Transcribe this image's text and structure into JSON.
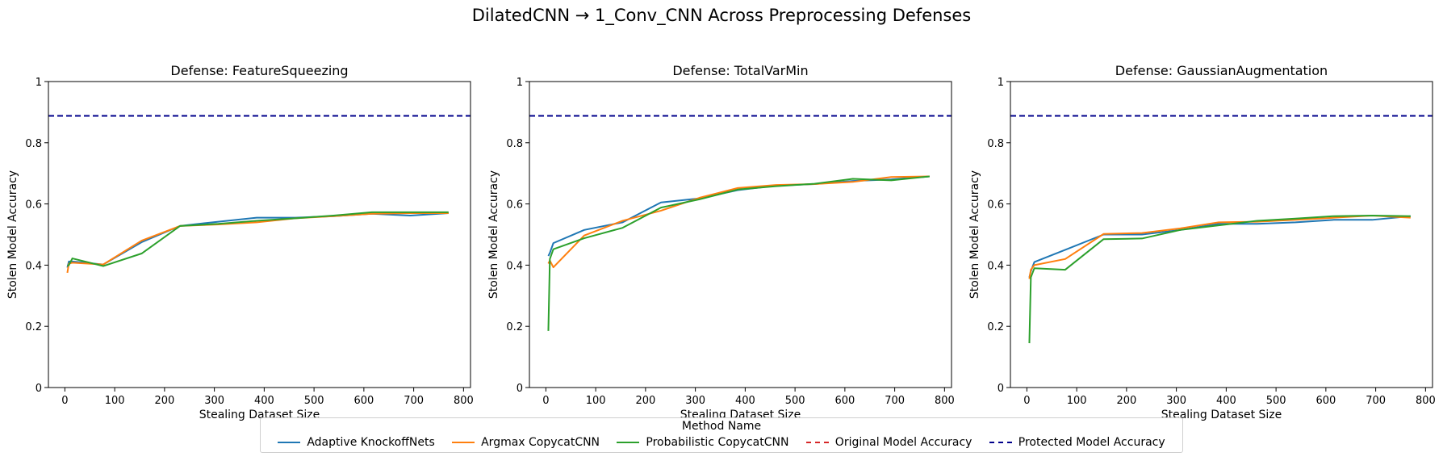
{
  "figure_title": "DilatedCNN → 1_Conv_CNN Across Preprocessing Defenses",
  "legend": {
    "title": "Method Name",
    "entries": [
      {
        "label": "Adaptive KnockoffNets",
        "color": "#1f77b4",
        "style": "solid"
      },
      {
        "label": "Argmax CopycatCNN",
        "color": "#ff7f0e",
        "style": "solid"
      },
      {
        "label": "Probabilistic CopycatCNN",
        "color": "#2ca02c",
        "style": "solid"
      },
      {
        "label": "Original Model Accuracy",
        "color": "#d62728",
        "style": "dashed"
      },
      {
        "label": "Protected Model Accuracy",
        "color": "#00008b",
        "style": "dashed"
      }
    ]
  },
  "chart_data": [
    {
      "type": "line",
      "title": "Defense: FeatureSqueezing",
      "xlabel": "Stealing Dataset Size",
      "ylabel": "Stolen Model Accuracy",
      "xlim": [
        -33,
        814
      ],
      "ylim": [
        0,
        1.0
      ],
      "xticks": [
        0,
        100,
        200,
        300,
        400,
        500,
        600,
        700,
        800
      ],
      "yticks": [
        0.0,
        0.2,
        0.4,
        0.6,
        0.8,
        1.0
      ],
      "grid": false,
      "hlines": [
        {
          "name": "Protected Model Accuracy",
          "y": 0.888,
          "color": "#00008b",
          "dash": true
        }
      ],
      "series": [
        {
          "name": "Adaptive KnockoffNets",
          "color": "#1f77b4",
          "x": [
            5,
            8,
            15,
            77,
            154,
            231,
            308,
            385,
            462,
            539,
            616,
            693,
            770
          ],
          "y": [
            0.392,
            0.412,
            0.412,
            0.402,
            0.475,
            0.528,
            0.542,
            0.555,
            0.555,
            0.56,
            0.568,
            0.562,
            0.57
          ]
        },
        {
          "name": "Argmax CopycatCNN",
          "color": "#ff7f0e",
          "x": [
            5,
            8,
            15,
            77,
            154,
            231,
            308,
            385,
            462,
            539,
            616,
            693,
            770
          ],
          "y": [
            0.375,
            0.405,
            0.408,
            0.402,
            0.48,
            0.528,
            0.533,
            0.54,
            0.553,
            0.56,
            0.568,
            0.57,
            0.57
          ]
        },
        {
          "name": "Probabilistic CopycatCNN",
          "color": "#2ca02c",
          "x": [
            5,
            8,
            15,
            77,
            154,
            231,
            308,
            385,
            462,
            539,
            616,
            693,
            770
          ],
          "y": [
            0.398,
            0.4,
            0.422,
            0.397,
            0.438,
            0.528,
            0.535,
            0.545,
            0.553,
            0.562,
            0.573,
            0.573,
            0.573
          ]
        }
      ]
    },
    {
      "type": "line",
      "title": "Defense: TotalVarMin",
      "xlabel": "Stealing Dataset Size",
      "ylabel": "Stolen Model Accuracy",
      "xlim": [
        -33,
        814
      ],
      "ylim": [
        0,
        1.0
      ],
      "xticks": [
        0,
        100,
        200,
        300,
        400,
        500,
        600,
        700,
        800
      ],
      "yticks": [
        0.0,
        0.2,
        0.4,
        0.6,
        0.8,
        1.0
      ],
      "grid": false,
      "hlines": [
        {
          "name": "Protected Model Accuracy",
          "y": 0.888,
          "color": "#00008b",
          "dash": true
        }
      ],
      "series": [
        {
          "name": "Adaptive KnockoffNets",
          "color": "#1f77b4",
          "x": [
            5,
            8,
            15,
            77,
            154,
            231,
            308,
            385,
            462,
            539,
            616,
            693,
            770
          ],
          "y": [
            0.43,
            0.44,
            0.472,
            0.515,
            0.54,
            0.605,
            0.618,
            0.645,
            0.66,
            0.665,
            0.675,
            0.68,
            0.69
          ]
        },
        {
          "name": "Argmax CopycatCNN",
          "color": "#ff7f0e",
          "x": [
            5,
            8,
            15,
            77,
            154,
            231,
            308,
            385,
            462,
            539,
            616,
            693,
            770
          ],
          "y": [
            0.405,
            0.415,
            0.393,
            0.497,
            0.545,
            0.578,
            0.62,
            0.652,
            0.662,
            0.665,
            0.672,
            0.688,
            0.69
          ]
        },
        {
          "name": "Probabilistic CopycatCNN",
          "color": "#2ca02c",
          "x": [
            5,
            8,
            15,
            77,
            154,
            231,
            308,
            385,
            462,
            539,
            616,
            693,
            770
          ],
          "y": [
            0.185,
            0.42,
            0.452,
            0.488,
            0.522,
            0.588,
            0.615,
            0.647,
            0.658,
            0.666,
            0.682,
            0.677,
            0.69
          ]
        }
      ]
    },
    {
      "type": "line",
      "title": "Defense: GaussianAugmentation",
      "xlabel": "Stealing Dataset Size",
      "ylabel": "Stolen Model Accuracy",
      "xlim": [
        -33,
        814
      ],
      "ylim": [
        0,
        1.0
      ],
      "xticks": [
        0,
        100,
        200,
        300,
        400,
        500,
        600,
        700,
        800
      ],
      "yticks": [
        0.0,
        0.2,
        0.4,
        0.6,
        0.8,
        1.0
      ],
      "grid": false,
      "hlines": [
        {
          "name": "Protected Model Accuracy",
          "y": 0.888,
          "color": "#00008b",
          "dash": true
        }
      ],
      "series": [
        {
          "name": "Adaptive KnockoffNets",
          "color": "#1f77b4",
          "x": [
            5,
            8,
            15,
            77,
            154,
            231,
            308,
            385,
            462,
            539,
            616,
            693,
            770
          ],
          "y": [
            0.36,
            0.38,
            0.41,
            0.45,
            0.5,
            0.5,
            0.515,
            0.535,
            0.535,
            0.54,
            0.548,
            0.548,
            0.56
          ]
        },
        {
          "name": "Argmax CopycatCNN",
          "color": "#ff7f0e",
          "x": [
            5,
            8,
            15,
            77,
            154,
            231,
            308,
            385,
            462,
            539,
            616,
            693,
            770
          ],
          "y": [
            0.355,
            0.385,
            0.4,
            0.42,
            0.502,
            0.505,
            0.52,
            0.54,
            0.542,
            0.548,
            0.555,
            0.562,
            0.555
          ]
        },
        {
          "name": "Probabilistic CopycatCNN",
          "color": "#2ca02c",
          "x": [
            5,
            8,
            15,
            77,
            154,
            231,
            308,
            385,
            462,
            539,
            616,
            693,
            770
          ],
          "y": [
            0.145,
            0.36,
            0.39,
            0.385,
            0.485,
            0.487,
            0.515,
            0.53,
            0.545,
            0.552,
            0.56,
            0.562,
            0.56
          ]
        }
      ]
    }
  ]
}
